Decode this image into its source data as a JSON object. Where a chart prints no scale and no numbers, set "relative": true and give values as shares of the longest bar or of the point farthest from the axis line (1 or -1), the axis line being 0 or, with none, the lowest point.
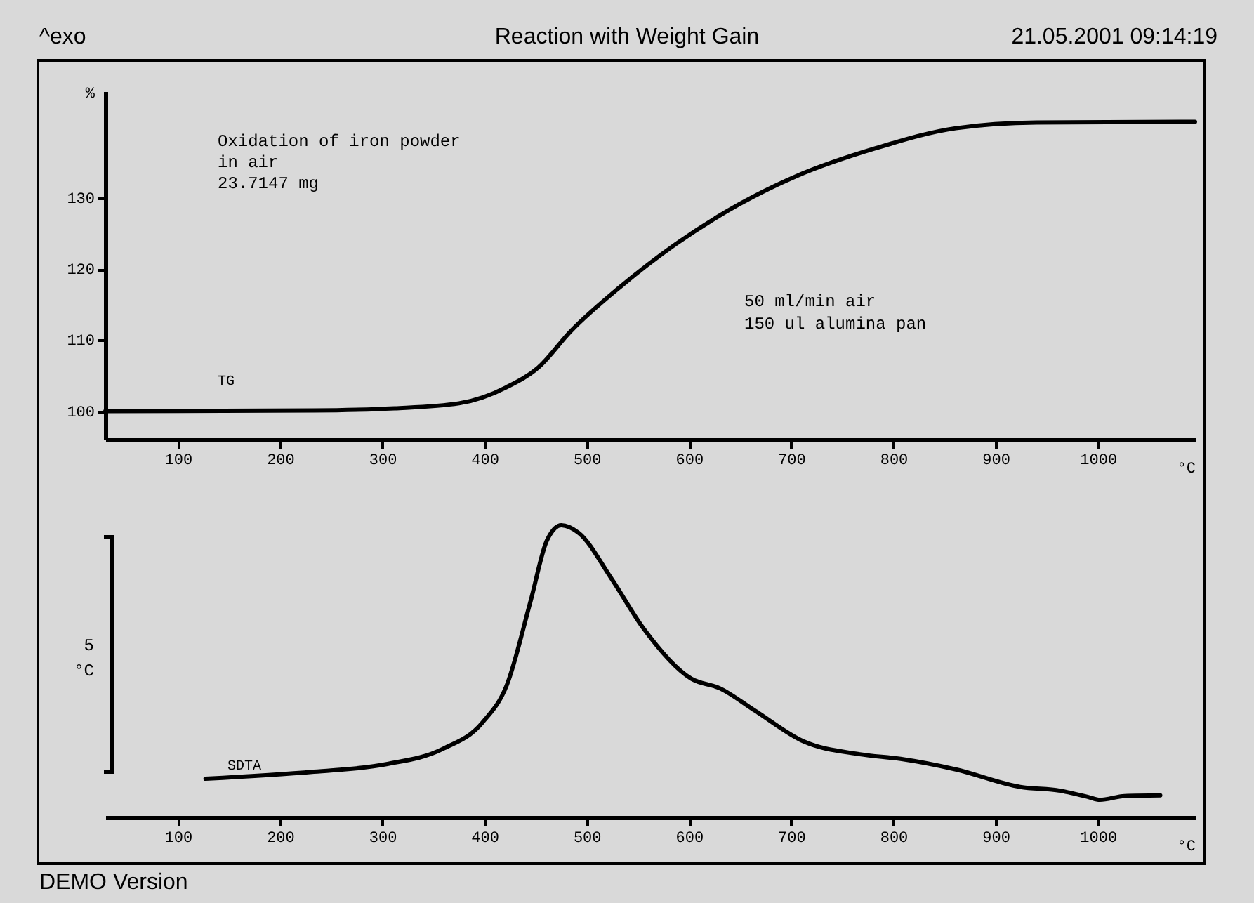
{
  "chart_data": [
    {
      "type": "line",
      "title": "Reaction with Weight Gain",
      "xlabel": "°C",
      "ylabel": "%",
      "x": [
        29,
        233,
        312,
        375,
        422,
        453,
        484,
        532,
        587,
        649,
        704,
        783,
        861,
        940,
        1095
      ],
      "series": [
        {
          "name": "TG",
          "color": "#000000",
          "values": [
            100,
            100.1,
            100.4,
            101.1,
            103.4,
            106.2,
            111.2,
            117.4,
            123.5,
            129.1,
            133,
            137,
            139.8,
            140.6,
            140.7
          ]
        }
      ],
      "xlim": [
        29,
        1095
      ],
      "ylim": [
        96,
        145
      ],
      "xticks": [
        100,
        200,
        300,
        400,
        500,
        600,
        700,
        800,
        900,
        1000
      ],
      "yticks": [
        100,
        110,
        120,
        130
      ],
      "line_style": "solid",
      "marker": "none",
      "annotations": [
        "^exo",
        "21.05.2001 09:14:19",
        "Oxidation of iron powder",
        "in air",
        "23.7147 mg",
        "50 ml/min air",
        "150 ul alumina pan"
      ]
    },
    {
      "type": "line",
      "relative": true,
      "xlabel": "°C",
      "x": [
        127,
        233,
        304,
        359,
        398,
        422,
        445,
        461,
        475,
        492,
        524,
        555,
        602,
        630,
        665,
        712,
        767,
        807,
        861,
        924,
        963,
        990,
        1002,
        1026,
        1061
      ],
      "series": [
        {
          "name": "SDTA",
          "color": "#000000",
          "values": [
            0.132,
            0.156,
            0.182,
            0.234,
            0.325,
            0.455,
            0.74,
            0.948,
            1,
            0.974,
            0.818,
            0.649,
            0.475,
            0.442,
            0.364,
            0.26,
            0.216,
            0.2,
            0.164,
            0.104,
            0.091,
            0.07,
            0.06,
            0.073,
            0.075
          ]
        }
      ],
      "xlim": [
        29,
        1095
      ],
      "xticks": [
        100,
        200,
        300,
        400,
        500,
        600,
        700,
        800,
        900,
        1000
      ],
      "line_style": "solid",
      "marker": "none",
      "annotations": [
        "5",
        "°C",
        "DEMO Version"
      ]
    }
  ]
}
